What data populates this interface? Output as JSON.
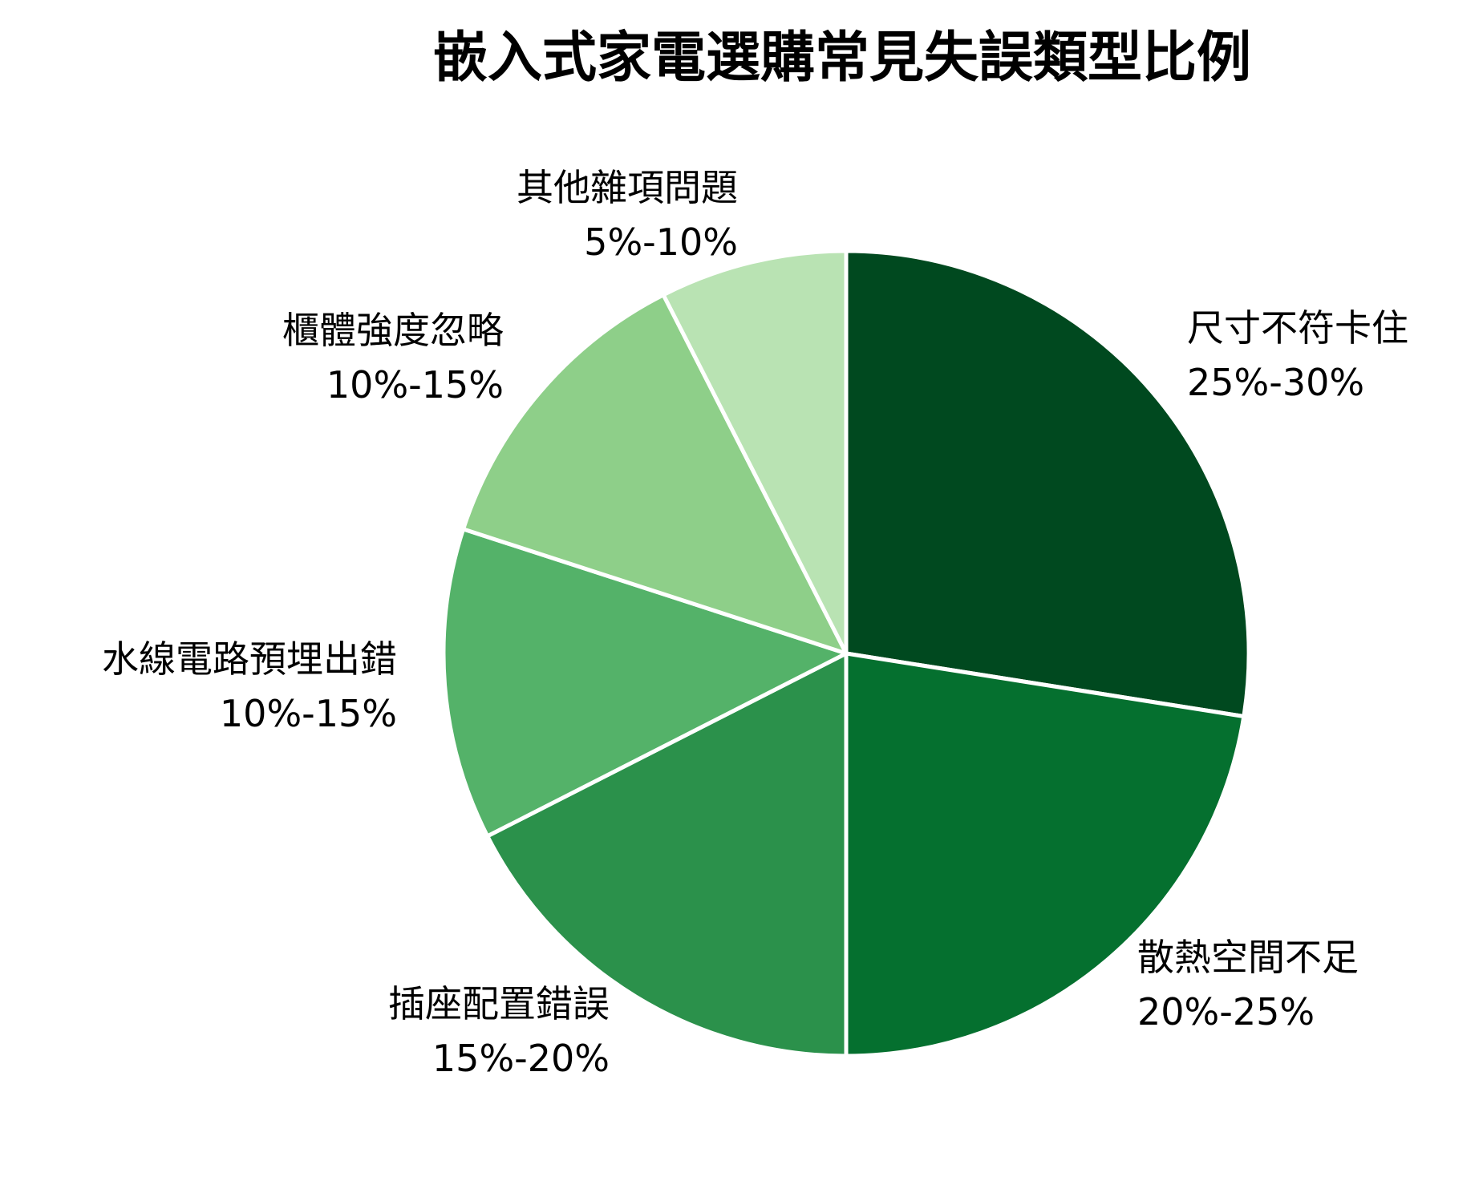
{
  "chart_data": {
    "type": "pie",
    "title": "嵌入式家電選購常見失誤類型比例",
    "colors": [
      "#00491f",
      "#05702f",
      "#2b914b",
      "#54b269",
      "#8ecf89",
      "#b9e3b3"
    ],
    "slices": [
      {
        "label": "尺寸不符卡住",
        "range": "25%-30%",
        "value": 27.5
      },
      {
        "label": "散熱空間不足",
        "range": "20%-25%",
        "value": 22.5
      },
      {
        "label": "插座配置錯誤",
        "range": "15%-20%",
        "value": 17.5
      },
      {
        "label": "水線電路預埋出錯",
        "range": "10%-15%",
        "value": 12.5
      },
      {
        "label": "櫃體強度忽略",
        "range": "10%-15%",
        "value": 12.5
      },
      {
        "label": "其他雜項問題",
        "range": "5%-10%",
        "value": 7.5
      }
    ]
  }
}
